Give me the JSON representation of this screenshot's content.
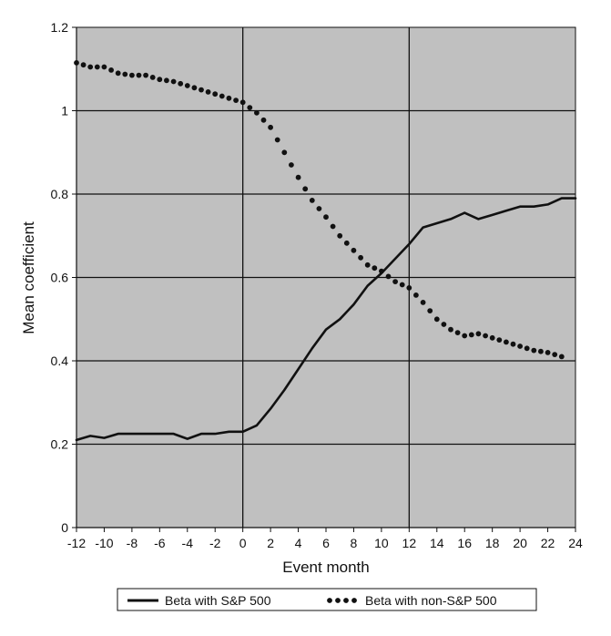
{
  "chart_data": {
    "type": "line",
    "title": "",
    "xlabel": "Event month",
    "ylabel": "Mean coefficient",
    "xlim": [
      -12,
      24
    ],
    "ylim": [
      0,
      1.2
    ],
    "x_ticks": [
      -12,
      -10,
      -8,
      -6,
      -4,
      -2,
      0,
      2,
      4,
      6,
      8,
      10,
      12,
      14,
      16,
      18,
      20,
      22,
      24
    ],
    "y_ticks": [
      0,
      0.2,
      0.4,
      0.6,
      0.8,
      1,
      1.2
    ],
    "x_tick_labels": [
      "-12",
      "-10",
      "-8",
      "-6",
      "-4",
      "-2",
      "0",
      "2",
      "4",
      "6",
      "8",
      "10",
      "12",
      "14",
      "16",
      "18",
      "20",
      "22",
      "24"
    ],
    "y_tick_labels": [
      "0",
      "0.2",
      "0.4",
      "0.6",
      "0.8",
      "1",
      "1.2"
    ],
    "vertical_gridlines_at": [
      0,
      12
    ],
    "horizontal_gridlines": true,
    "legend_position": "bottom",
    "colors": {
      "plot_background": "#c0c0c0",
      "line": "#111111",
      "grid": "#111111"
    },
    "series": [
      {
        "name": "Beta with S&P 500",
        "style": "solid",
        "x": [
          -12,
          -11,
          -10,
          -9,
          -8,
          -7,
          -6,
          -5,
          -4,
          -3,
          -2,
          -1,
          0,
          1,
          2,
          3,
          4,
          5,
          6,
          7,
          8,
          9,
          10,
          11,
          12,
          13,
          14,
          15,
          16,
          17,
          18,
          19,
          20,
          21,
          22,
          23,
          24
        ],
        "values": [
          0.21,
          0.22,
          0.215,
          0.225,
          0.225,
          0.225,
          0.225,
          0.225,
          0.213,
          0.225,
          0.225,
          0.23,
          0.23,
          0.245,
          0.285,
          0.33,
          0.38,
          0.43,
          0.475,
          0.5,
          0.535,
          0.58,
          0.61,
          0.645,
          0.68,
          0.72,
          0.73,
          0.74,
          0.755,
          0.74,
          0.75,
          0.76,
          0.77,
          0.77,
          0.775,
          0.79,
          0.79
        ]
      },
      {
        "name": "Beta with non-S&P 500",
        "style": "dotted",
        "x": [
          -12,
          -11,
          -10,
          -9,
          -8,
          -7,
          -6,
          -5,
          -4,
          -3,
          -2,
          -1,
          0,
          1,
          2,
          3,
          4,
          5,
          6,
          7,
          8,
          9,
          10,
          11,
          12,
          13,
          14,
          15,
          16,
          17,
          18,
          19,
          20,
          21,
          22,
          23
        ],
        "values": [
          1.115,
          1.105,
          1.105,
          1.09,
          1.085,
          1.085,
          1.075,
          1.07,
          1.06,
          1.05,
          1.04,
          1.03,
          1.02,
          0.995,
          0.96,
          0.9,
          0.84,
          0.785,
          0.745,
          0.7,
          0.665,
          0.63,
          0.615,
          0.59,
          0.575,
          0.54,
          0.5,
          0.475,
          0.46,
          0.465,
          0.455,
          0.445,
          0.435,
          0.425,
          0.42,
          0.41
        ]
      }
    ]
  }
}
